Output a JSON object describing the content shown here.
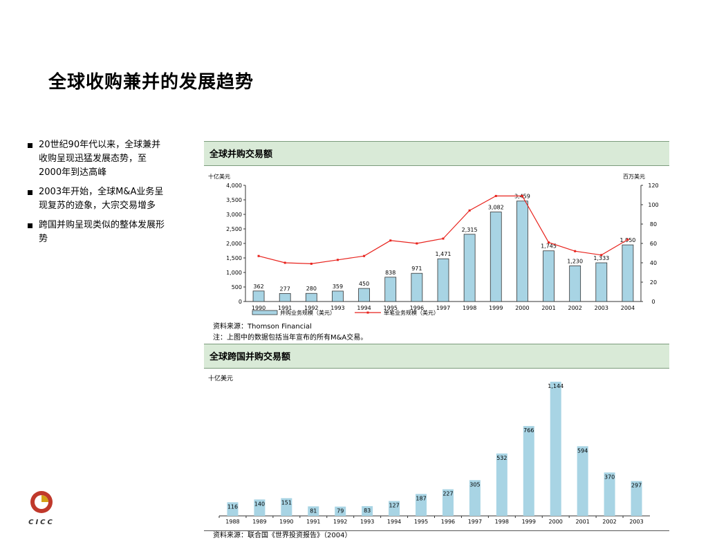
{
  "title": "全球收购兼并的发展趋势",
  "bullets": [
    "20世纪90年代以来，全球兼并收购呈现迅猛发展态势，至2000年到达高峰",
    "2003年开始，全球M&A业务呈现复苏的迹象，大宗交易增多",
    "跨国并购呈现类似的整体发展形势"
  ],
  "logo": {
    "text": "CICC"
  },
  "colors": {
    "bar": "#a8d4e4",
    "bar_border": "#333333",
    "line": "#e8221c",
    "header_bg": "#d9ead7"
  },
  "chart_data": [
    {
      "type": "bar",
      "title": "全球并购交易额",
      "left_unit": "十亿美元",
      "right_unit": "百万美元",
      "categories": [
        "1990",
        "1991",
        "1992",
        "1993",
        "1994",
        "1995",
        "1996",
        "1997",
        "1998",
        "1999",
        "2000",
        "2001",
        "2002",
        "2003",
        "2004"
      ],
      "series": [
        {
          "name": "并购业务规模（美元）",
          "type": "bar",
          "axis": "left",
          "values": [
            362,
            277,
            280,
            359,
            450,
            838,
            971,
            1471,
            2315,
            3082,
            3459,
            1745,
            1230,
            1333,
            1950
          ],
          "labels": [
            "362",
            "277",
            "280",
            "359",
            "450",
            "838",
            "971",
            "1,471",
            "2,315",
            "3,082",
            "3,459",
            "1,745",
            "1,230",
            "1,333",
            "1,950"
          ]
        },
        {
          "name": "单笔业务规模（美元）",
          "type": "line",
          "axis": "right",
          "values": [
            47,
            40,
            39,
            43,
            47,
            63,
            60,
            65,
            94,
            109,
            109,
            61,
            52,
            48,
            64
          ]
        }
      ],
      "ylim_left": [
        0,
        4000
      ],
      "yticks_left": [
        "0",
        "500",
        "1,000",
        "1,500",
        "2,000",
        "2,500",
        "3,000",
        "3,500",
        "4,000"
      ],
      "ylim_right": [
        0,
        120
      ],
      "yticks_right": [
        "0",
        "20",
        "40",
        "60",
        "80",
        "100",
        "120"
      ],
      "grid": false,
      "legend": "bottom"
    },
    {
      "type": "bar",
      "title": "全球跨国并购交易额",
      "left_unit": "十亿美元",
      "categories": [
        "1988",
        "1989",
        "1990",
        "1991",
        "1992",
        "1993",
        "1994",
        "1995",
        "1996",
        "1997",
        "1998",
        "1999",
        "2000",
        "2001",
        "2002",
        "2003"
      ],
      "values": [
        116,
        140,
        151,
        81,
        79,
        83,
        127,
        187,
        227,
        305,
        532,
        766,
        1144,
        594,
        370,
        297
      ],
      "labels": [
        "116",
        "140",
        "151",
        "81",
        "79",
        "83",
        "127",
        "187",
        "227",
        "305",
        "532",
        "766",
        "1,144",
        "594",
        "370",
        "297"
      ],
      "ylim": [
        0,
        1144
      ],
      "grid": false
    }
  ],
  "notes": {
    "source1": "资料来源：Thomson Financial",
    "note1": "注：上图中的数据包括当年宣布的所有M&A交易。",
    "source2": "资料来源：联合国《世界投资报告》（2004）"
  }
}
